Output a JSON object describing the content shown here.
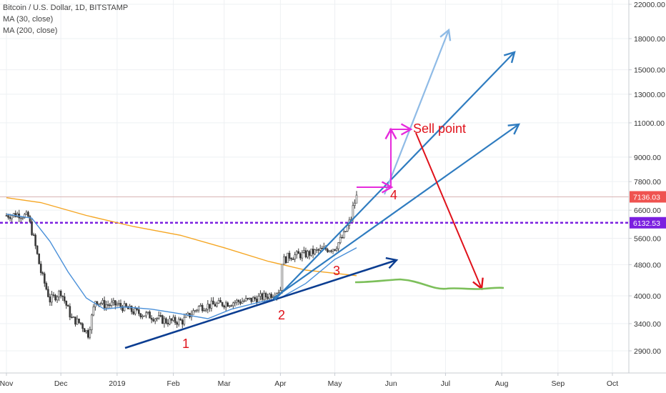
{
  "legend": {
    "title": "Bitcoin / U.S. Dollar, 1D, BITSTAMP",
    "ma30": "MA (30, close)",
    "ma200": "MA (200, close)"
  },
  "colors": {
    "up": "#26a69a",
    "candle": "#3a3a3a",
    "ma30": "#4a90d9",
    "ma200": "#f5a623",
    "support": "#7b1fe0",
    "trendline_dark": "#0b3d91",
    "trendline_mid": "#2f7cc0",
    "trendline_light": "#8fbbe6",
    "magenta": "#e62bdc",
    "red": "#e0121b",
    "green_projection": "#7cbf5a",
    "current_price_badge": "#ef5350",
    "support_badge": "#7b1fe0"
  },
  "chart_data": {
    "type": "line",
    "y_scale": "log",
    "y_ticks": [
      "22000.00",
      "18000.00",
      "15000.00",
      "13000.00",
      "11000.00",
      "9000.00",
      "7800.00",
      "6600.00",
      "5600.00",
      "4800.00",
      "4000.00",
      "3400.00",
      "2900.00"
    ],
    "y_tick_values": [
      22000,
      18000,
      15000,
      13000,
      11000,
      9000,
      7800,
      6600,
      5600,
      4800,
      4000,
      3400,
      2900
    ],
    "x_ticks": [
      "Nov",
      "Dec",
      "2019",
      "Feb",
      "Mar",
      "Apr",
      "May",
      "Jun",
      "Jul",
      "Aug",
      "Sep",
      "Oct"
    ],
    "x_tick_dates": [
      "2018-11-01",
      "2018-12-01",
      "2019-01-01",
      "2019-02-01",
      "2019-03-01",
      "2019-04-01",
      "2019-05-01",
      "2019-06-01",
      "2019-07-01",
      "2019-08-01",
      "2019-09-01",
      "2019-10-01"
    ],
    "ylim": [
      2600,
      23000
    ],
    "current_price": {
      "label": "7136.03",
      "value": 7136.03
    },
    "support_level": {
      "label": "6132.53",
      "value": 6132.53
    },
    "price_series": {
      "dates": [
        "2018-11-01",
        "2018-11-08",
        "2018-11-13",
        "2018-11-16",
        "2018-11-20",
        "2018-11-25",
        "2018-12-01",
        "2018-12-07",
        "2018-12-12",
        "2018-12-16",
        "2018-12-20",
        "2018-12-25",
        "2019-01-01",
        "2019-01-10",
        "2019-01-20",
        "2019-01-28",
        "2019-02-06",
        "2019-02-15",
        "2019-02-24",
        "2019-03-05",
        "2019-03-15",
        "2019-03-25",
        "2019-04-01",
        "2019-04-02",
        "2019-04-06",
        "2019-04-15",
        "2019-04-25",
        "2019-05-01",
        "2019-05-06",
        "2019-05-10",
        "2019-05-11",
        "2019-05-13"
      ],
      "close": [
        6400,
        6450,
        6350,
        5600,
        4600,
        3900,
        4100,
        3500,
        3400,
        3200,
        3900,
        3800,
        3800,
        3650,
        3550,
        3450,
        3450,
        3750,
        3800,
        3850,
        3900,
        4000,
        4150,
        4900,
        5050,
        5100,
        5250,
        5300,
        5700,
        6300,
        6700,
        7136.03
      ]
    },
    "ma30_series": {
      "dates": [
        "2018-11-01",
        "2018-11-15",
        "2018-11-25",
        "2018-12-05",
        "2018-12-15",
        "2018-12-25",
        "2019-01-05",
        "2019-01-20",
        "2019-02-05",
        "2019-02-20",
        "2019-03-05",
        "2019-03-20",
        "2019-04-01",
        "2019-04-15",
        "2019-05-01",
        "2019-05-13"
      ],
      "values": [
        6450,
        6300,
        5500,
        4600,
        3950,
        3700,
        3750,
        3700,
        3600,
        3500,
        3700,
        3850,
        3950,
        4300,
        4950,
        5300
      ]
    },
    "ma200_series": {
      "dates": [
        "2018-11-01",
        "2018-11-20",
        "2018-12-15",
        "2019-01-10",
        "2019-02-05",
        "2019-03-01",
        "2019-03-25",
        "2019-04-15",
        "2019-05-13"
      ],
      "values": [
        7100,
        6900,
        6400,
        6000,
        5700,
        5300,
        4900,
        4650,
        4500
      ]
    },
    "annotations": {
      "labels": [
        "1",
        "2",
        "3",
        "4"
      ],
      "sell_point": "Sell point"
    }
  }
}
